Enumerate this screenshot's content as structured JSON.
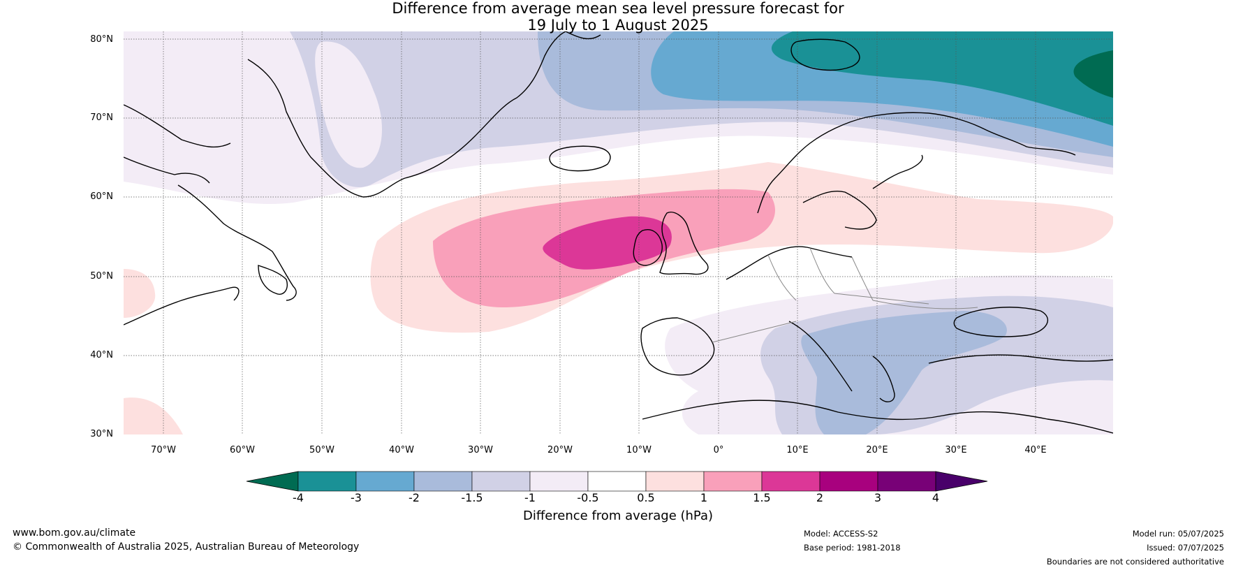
{
  "title": {
    "line1": "Difference from average mean sea level pressure forecast for",
    "line2": "19 July to 1 August 2025"
  },
  "axes": {
    "lat_labels": [
      "80°N",
      "70°N",
      "60°N",
      "50°N",
      "40°N",
      "30°N"
    ],
    "lon_labels": [
      "70°W",
      "60°W",
      "50°W",
      "40°W",
      "30°W",
      "20°W",
      "10°W",
      "0°",
      "10°E",
      "20°E",
      "30°E",
      "40°E"
    ]
  },
  "colorbar": {
    "tick_labels": [
      "-4",
      "-3",
      "-2",
      "-1.5",
      "-1",
      "-0.5",
      "0.5",
      "1",
      "1.5",
      "2",
      "3",
      "4"
    ],
    "colors": [
      "#006b52",
      "#1a9196",
      "#66a9d1",
      "#a9bbdb",
      "#d1d1e6",
      "#f3ecf6",
      "#ffffff",
      "#fde0df",
      "#f9a0ba",
      "#dc3797",
      "#a8017e",
      "#780177",
      "#49006a"
    ],
    "label": "Difference from average (hPa)"
  },
  "footer": {
    "website": "www.bom.gov.au/climate",
    "copyright": "© Commonwealth of Australia 2025, Australian Bureau of Meteorology",
    "model": "Model: ACCESS-S2",
    "base_period": "Base period: 1981-2018",
    "model_run": "Model run: 05/07/2025",
    "issued": "Issued: 07/07/2025",
    "disclaimer": "Boundaries are not considered authoritative"
  }
}
